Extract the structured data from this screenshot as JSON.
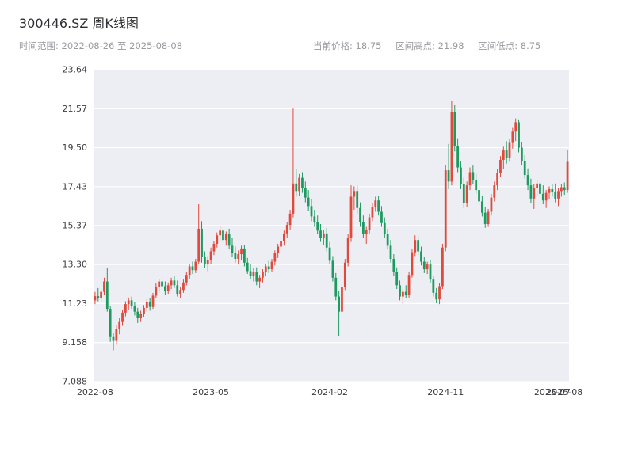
{
  "header": {
    "title": "300446.SZ 周K线图",
    "subtitle_left": "时间范围: 2022-08-26 至 2025-08-08",
    "summary": {
      "current": "当前价格: 18.75",
      "high": "区间高点: 21.98",
      "low": "区间低点: 8.75"
    }
  },
  "chart_data": {
    "type": "candlestick",
    "title": "300446.SZ 周K线图",
    "symbol": "300446.SZ",
    "period": "weekly",
    "date_range": {
      "start": "2022-08-26",
      "end": "2025-08-08"
    },
    "current_price": 18.75,
    "range_high": 21.98,
    "range_low": 8.75,
    "y_min": 7.088,
    "y_max": 23.64,
    "y_tick_labels": [
      "23.64",
      "21.57",
      "19.50",
      "17.43",
      "15.37",
      "13.30",
      "11.23",
      "9.158",
      "7.088"
    ],
    "x_ticks": [
      {
        "label": "2022-08",
        "index": 0
      },
      {
        "label": "2023-05",
        "index": 38
      },
      {
        "label": "2024-02",
        "index": 77
      },
      {
        "label": "2024-11",
        "index": 115
      },
      {
        "label": "2025-07",
        "index": 150
      },
      {
        "label": "2025-08",
        "index": 154
      }
    ],
    "up_color": "#df4a3c",
    "down_color": "#1d9a5f",
    "plot_bg": "#edeef4",
    "grid_color": "#ffffff",
    "grid": true,
    "candles": [
      [
        11.4,
        11.85,
        11.2,
        11.62
      ],
      [
        11.62,
        12.05,
        11.35,
        11.5
      ],
      [
        11.5,
        11.95,
        11.3,
        11.85
      ],
      [
        11.85,
        12.6,
        11.7,
        12.4
      ],
      [
        12.4,
        13.1,
        10.8,
        10.95
      ],
      [
        10.95,
        11.1,
        9.2,
        9.45
      ],
      [
        9.45,
        9.7,
        8.75,
        9.25
      ],
      [
        9.25,
        10.1,
        9.05,
        9.9
      ],
      [
        9.9,
        10.45,
        9.6,
        10.25
      ],
      [
        10.25,
        10.9,
        10.05,
        10.75
      ],
      [
        10.75,
        11.35,
        10.55,
        11.2
      ],
      [
        11.2,
        11.55,
        10.9,
        11.4
      ],
      [
        11.4,
        11.6,
        10.95,
        11.1
      ],
      [
        11.1,
        11.3,
        10.6,
        10.8
      ],
      [
        10.8,
        11.0,
        10.2,
        10.45
      ],
      [
        10.45,
        10.85,
        10.25,
        10.7
      ],
      [
        10.7,
        11.15,
        10.5,
        11.0
      ],
      [
        11.0,
        11.45,
        10.8,
        11.3
      ],
      [
        11.3,
        11.5,
        10.85,
        11.05
      ],
      [
        11.05,
        11.8,
        10.95,
        11.65
      ],
      [
        11.65,
        12.3,
        11.5,
        12.1
      ],
      [
        12.1,
        12.55,
        11.85,
        12.4
      ],
      [
        12.4,
        12.65,
        11.95,
        12.15
      ],
      [
        12.15,
        12.4,
        11.7,
        11.9
      ],
      [
        11.9,
        12.35,
        11.75,
        12.2
      ],
      [
        12.2,
        12.6,
        12.0,
        12.45
      ],
      [
        12.45,
        12.7,
        12.05,
        12.2
      ],
      [
        12.2,
        12.45,
        11.6,
        11.75
      ],
      [
        11.75,
        12.1,
        11.5,
        11.95
      ],
      [
        11.95,
        12.5,
        11.8,
        12.35
      ],
      [
        12.35,
        12.9,
        12.2,
        12.75
      ],
      [
        12.75,
        13.35,
        12.55,
        13.2
      ],
      [
        13.2,
        13.45,
        12.8,
        13.0
      ],
      [
        13.0,
        13.6,
        12.85,
        13.45
      ],
      [
        13.45,
        16.5,
        13.3,
        15.2
      ],
      [
        15.2,
        15.6,
        13.4,
        13.7
      ],
      [
        13.7,
        14.0,
        13.1,
        13.3
      ],
      [
        13.3,
        13.75,
        12.95,
        13.55
      ],
      [
        13.55,
        14.2,
        13.35,
        14.0
      ],
      [
        14.0,
        14.55,
        13.8,
        14.4
      ],
      [
        14.4,
        15.0,
        14.2,
        14.85
      ],
      [
        14.85,
        15.35,
        14.55,
        15.1
      ],
      [
        15.1,
        15.3,
        14.4,
        14.6
      ],
      [
        14.6,
        15.05,
        14.3,
        14.9
      ],
      [
        14.9,
        15.2,
        14.1,
        14.3
      ],
      [
        14.3,
        14.7,
        13.7,
        13.9
      ],
      [
        13.9,
        14.25,
        13.4,
        13.6
      ],
      [
        13.6,
        14.05,
        13.3,
        13.85
      ],
      [
        13.85,
        14.3,
        13.55,
        14.15
      ],
      [
        14.15,
        14.35,
        13.2,
        13.4
      ],
      [
        13.4,
        13.65,
        12.8,
        12.95
      ],
      [
        12.95,
        13.3,
        12.55,
        12.7
      ],
      [
        12.7,
        13.1,
        12.4,
        12.9
      ],
      [
        12.9,
        13.15,
        12.2,
        12.4
      ],
      [
        12.4,
        12.75,
        12.05,
        12.6
      ],
      [
        12.6,
        13.05,
        12.35,
        12.9
      ],
      [
        12.9,
        13.35,
        12.7,
        13.2
      ],
      [
        13.2,
        13.5,
        12.85,
        13.05
      ],
      [
        13.05,
        13.6,
        12.9,
        13.45
      ],
      [
        13.45,
        14.05,
        13.25,
        13.9
      ],
      [
        13.9,
        14.4,
        13.65,
        14.25
      ],
      [
        14.25,
        14.7,
        14.0,
        14.55
      ],
      [
        14.55,
        15.1,
        14.3,
        14.95
      ],
      [
        14.95,
        15.55,
        14.7,
        15.4
      ],
      [
        15.4,
        16.2,
        15.15,
        16.0
      ],
      [
        16.0,
        21.57,
        15.8,
        17.6
      ],
      [
        17.6,
        18.35,
        16.9,
        17.2
      ],
      [
        17.2,
        18.1,
        16.95,
        17.9
      ],
      [
        17.9,
        18.2,
        17.1,
        17.35
      ],
      [
        17.35,
        17.7,
        16.6,
        16.85
      ],
      [
        16.85,
        17.25,
        16.15,
        16.4
      ],
      [
        16.4,
        16.75,
        15.6,
        15.85
      ],
      [
        15.85,
        16.2,
        15.3,
        15.55
      ],
      [
        15.55,
        15.9,
        14.9,
        15.1
      ],
      [
        15.1,
        15.45,
        14.5,
        14.7
      ],
      [
        14.7,
        15.15,
        14.35,
        14.95
      ],
      [
        14.95,
        15.25,
        14.0,
        14.2
      ],
      [
        14.2,
        14.5,
        13.3,
        13.5
      ],
      [
        13.5,
        13.75,
        12.4,
        12.6
      ],
      [
        12.6,
        12.85,
        11.4,
        11.6
      ],
      [
        11.6,
        11.9,
        9.5,
        10.8
      ],
      [
        10.8,
        12.3,
        10.6,
        12.1
      ],
      [
        12.1,
        13.6,
        11.95,
        13.4
      ],
      [
        13.4,
        14.9,
        13.2,
        14.7
      ],
      [
        14.7,
        17.5,
        14.5,
        16.9
      ],
      [
        16.9,
        17.45,
        16.2,
        17.2
      ],
      [
        17.2,
        17.5,
        16.0,
        16.3
      ],
      [
        16.3,
        16.6,
        15.3,
        15.55
      ],
      [
        15.55,
        15.9,
        14.7,
        14.9
      ],
      [
        14.9,
        15.3,
        14.4,
        15.15
      ],
      [
        15.15,
        16.0,
        14.95,
        15.8
      ],
      [
        15.8,
        16.55,
        15.6,
        16.35
      ],
      [
        16.35,
        16.9,
        16.1,
        16.7
      ],
      [
        16.7,
        16.95,
        15.9,
        16.1
      ],
      [
        16.1,
        16.4,
        15.3,
        15.5
      ],
      [
        15.5,
        15.8,
        14.7,
        14.9
      ],
      [
        14.9,
        15.2,
        14.1,
        14.3
      ],
      [
        14.3,
        14.6,
        13.4,
        13.6
      ],
      [
        13.6,
        13.85,
        12.7,
        12.9
      ],
      [
        12.9,
        13.15,
        12.0,
        12.2
      ],
      [
        12.2,
        12.45,
        11.4,
        11.6
      ],
      [
        11.6,
        12.0,
        11.2,
        11.85
      ],
      [
        11.85,
        12.2,
        11.5,
        11.7
      ],
      [
        11.7,
        12.9,
        11.55,
        12.75
      ],
      [
        12.75,
        14.1,
        12.6,
        13.95
      ],
      [
        13.95,
        14.85,
        13.75,
        14.6
      ],
      [
        14.6,
        14.8,
        13.8,
        14.0
      ],
      [
        14.0,
        14.25,
        13.25,
        13.45
      ],
      [
        13.45,
        13.7,
        12.85,
        13.05
      ],
      [
        13.05,
        13.45,
        12.8,
        13.3
      ],
      [
        13.3,
        13.55,
        12.3,
        12.5
      ],
      [
        12.5,
        12.7,
        11.6,
        11.8
      ],
      [
        11.8,
        12.05,
        11.25,
        11.45
      ],
      [
        11.45,
        12.3,
        11.2,
        12.15
      ],
      [
        12.15,
        14.4,
        12.0,
        14.2
      ],
      [
        14.2,
        18.6,
        14.0,
        18.3
      ],
      [
        18.3,
        19.7,
        17.3,
        17.7
      ],
      [
        17.7,
        21.98,
        17.5,
        21.4
      ],
      [
        21.4,
        21.75,
        19.3,
        19.6
      ],
      [
        19.6,
        20.0,
        18.2,
        18.45
      ],
      [
        18.45,
        18.8,
        17.3,
        17.55
      ],
      [
        17.55,
        17.9,
        16.3,
        16.55
      ],
      [
        16.55,
        17.7,
        16.35,
        17.5
      ],
      [
        17.5,
        18.45,
        17.25,
        18.2
      ],
      [
        18.2,
        18.55,
        17.55,
        17.8
      ],
      [
        17.8,
        18.1,
        17.05,
        17.25
      ],
      [
        17.25,
        17.55,
        16.45,
        16.65
      ],
      [
        16.65,
        16.95,
        15.85,
        16.05
      ],
      [
        16.05,
        16.35,
        15.25,
        15.45
      ],
      [
        15.45,
        16.25,
        15.3,
        16.1
      ],
      [
        16.1,
        17.05,
        15.9,
        16.85
      ],
      [
        16.85,
        17.7,
        16.65,
        17.5
      ],
      [
        17.5,
        18.35,
        17.25,
        18.15
      ],
      [
        18.15,
        19.05,
        17.95,
        18.85
      ],
      [
        18.85,
        19.55,
        18.35,
        19.35
      ],
      [
        19.35,
        19.85,
        18.65,
        18.95
      ],
      [
        18.95,
        19.95,
        18.75,
        19.75
      ],
      [
        19.75,
        20.55,
        19.45,
        20.35
      ],
      [
        20.35,
        21.05,
        19.85,
        20.85
      ],
      [
        20.85,
        21.0,
        19.25,
        19.5
      ],
      [
        19.5,
        19.8,
        18.55,
        18.8
      ],
      [
        18.8,
        19.1,
        17.85,
        18.05
      ],
      [
        18.05,
        18.4,
        17.25,
        17.5
      ],
      [
        17.5,
        17.85,
        16.55,
        16.8
      ],
      [
        16.8,
        17.55,
        16.25,
        17.35
      ],
      [
        17.35,
        17.8,
        16.95,
        17.6
      ],
      [
        17.6,
        17.85,
        16.85,
        17.05
      ],
      [
        17.05,
        17.5,
        16.5,
        16.7
      ],
      [
        16.7,
        17.25,
        16.3,
        17.1
      ],
      [
        17.1,
        17.45,
        16.8,
        17.3
      ],
      [
        17.3,
        17.55,
        16.9,
        17.15
      ],
      [
        17.15,
        17.6,
        16.6,
        16.8
      ],
      [
        16.8,
        17.35,
        16.4,
        17.2
      ],
      [
        17.2,
        17.55,
        16.9,
        17.4
      ],
      [
        17.4,
        17.65,
        17.0,
        17.25
      ],
      [
        17.25,
        19.4,
        17.1,
        18.75
      ]
    ]
  }
}
